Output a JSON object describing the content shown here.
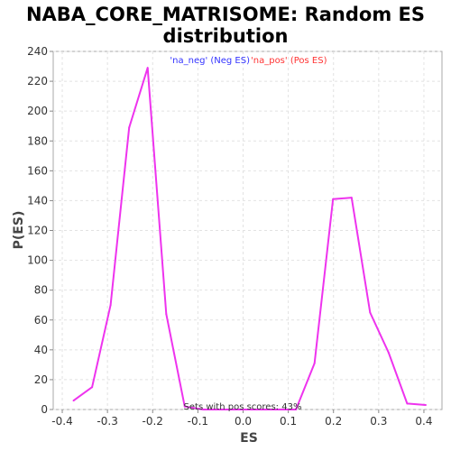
{
  "chart_data": {
    "type": "line",
    "title": "NABA_CORE_MATRISOME: Random ES distribution",
    "title_lines": [
      "NABA_CORE_MATRISOME: Random ES",
      "distribution"
    ],
    "xlabel": "ES",
    "ylabel": "P(ES)",
    "xlim": [
      -0.42,
      0.44
    ],
    "ylim": [
      0,
      240
    ],
    "xticks": [
      -0.4,
      -0.3,
      -0.2,
      -0.1,
      0.0,
      0.1,
      0.2,
      0.3,
      0.4
    ],
    "xtick_labels": [
      "-0.4",
      "-0.3",
      "-0.2",
      "-0.1",
      "0.0",
      "0.1",
      "0.2",
      "0.3",
      "0.4"
    ],
    "yticks": [
      0,
      20,
      40,
      60,
      80,
      100,
      120,
      140,
      160,
      180,
      200,
      220,
      240
    ],
    "ytick_labels": [
      "0",
      "20",
      "40",
      "60",
      "80",
      "100",
      "120",
      "140",
      "160",
      "180",
      "200",
      "220",
      "240"
    ],
    "grid": true,
    "legend": [
      {
        "text": "'na_neg' (Neg ES)",
        "color": "#3333ff"
      },
      {
        "text": "'na_pos' (Pos ES)",
        "color": "#ff3333"
      }
    ],
    "series": [
      {
        "color": "#ee33ee",
        "x": [
          -0.375,
          -0.334,
          -0.293,
          -0.252,
          -0.211,
          -0.17,
          -0.129,
          -0.088,
          -0.047,
          -0.006,
          0.035,
          0.076,
          0.117,
          0.158,
          0.199,
          0.24,
          0.281,
          0.322,
          0.363,
          0.404
        ],
        "y": [
          6,
          15,
          70,
          189,
          229,
          64,
          2,
          0,
          0,
          0,
          0,
          0,
          0,
          31,
          141,
          142,
          65,
          38,
          4,
          3
        ]
      }
    ],
    "annotation": "Sets with pos scores: 43%"
  }
}
